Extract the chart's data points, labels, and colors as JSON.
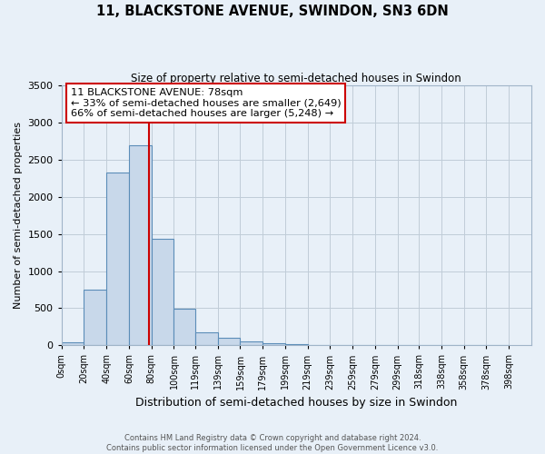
{
  "title": "11, BLACKSTONE AVENUE, SWINDON, SN3 6DN",
  "subtitle": "Size of property relative to semi-detached houses in Swindon",
  "xlabel": "Distribution of semi-detached houses by size in Swindon",
  "ylabel": "Number of semi-detached properties",
  "bar_color": "#c8d8ea",
  "bar_edge_color": "#5b8db8",
  "bar_left_edges": [
    0,
    20,
    40,
    60,
    80,
    100,
    119,
    139,
    159,
    179,
    199,
    219,
    239,
    259,
    279,
    299,
    318,
    338,
    358,
    378
  ],
  "bar_widths": [
    20,
    20,
    20,
    20,
    20,
    19,
    20,
    20,
    20,
    20,
    20,
    20,
    20,
    20,
    20,
    19,
    20,
    20,
    20,
    20
  ],
  "bar_heights": [
    40,
    750,
    2330,
    2700,
    1430,
    490,
    175,
    95,
    50,
    25,
    10,
    5,
    3,
    3,
    3,
    3,
    3,
    3,
    3,
    3
  ],
  "x_tick_labels": [
    "0sqm",
    "20sqm",
    "40sqm",
    "60sqm",
    "80sqm",
    "100sqm",
    "119sqm",
    "139sqm",
    "159sqm",
    "179sqm",
    "199sqm",
    "219sqm",
    "239sqm",
    "259sqm",
    "279sqm",
    "299sqm",
    "318sqm",
    "338sqm",
    "358sqm",
    "378sqm",
    "398sqm"
  ],
  "x_tick_positions": [
    0,
    20,
    40,
    60,
    80,
    100,
    119,
    139,
    159,
    179,
    199,
    219,
    239,
    259,
    279,
    299,
    318,
    338,
    358,
    378,
    398
  ],
  "ylim": [
    0,
    3500
  ],
  "xlim": [
    0,
    418
  ],
  "property_line_x": 78,
  "property_line_color": "#cc0000",
  "annotation_title": "11 BLACKSTONE AVENUE: 78sqm",
  "annotation_line1": "← 33% of semi-detached houses are smaller (2,649)",
  "annotation_line2": "66% of semi-detached houses are larger (5,248) →",
  "annotation_box_color": "#ffffff",
  "annotation_box_edge_color": "#cc0000",
  "grid_color": "#c0ccd8",
  "background_color": "#e8f0f8",
  "footer_line1": "Contains HM Land Registry data © Crown copyright and database right 2024.",
  "footer_line2": "Contains public sector information licensed under the Open Government Licence v3.0."
}
